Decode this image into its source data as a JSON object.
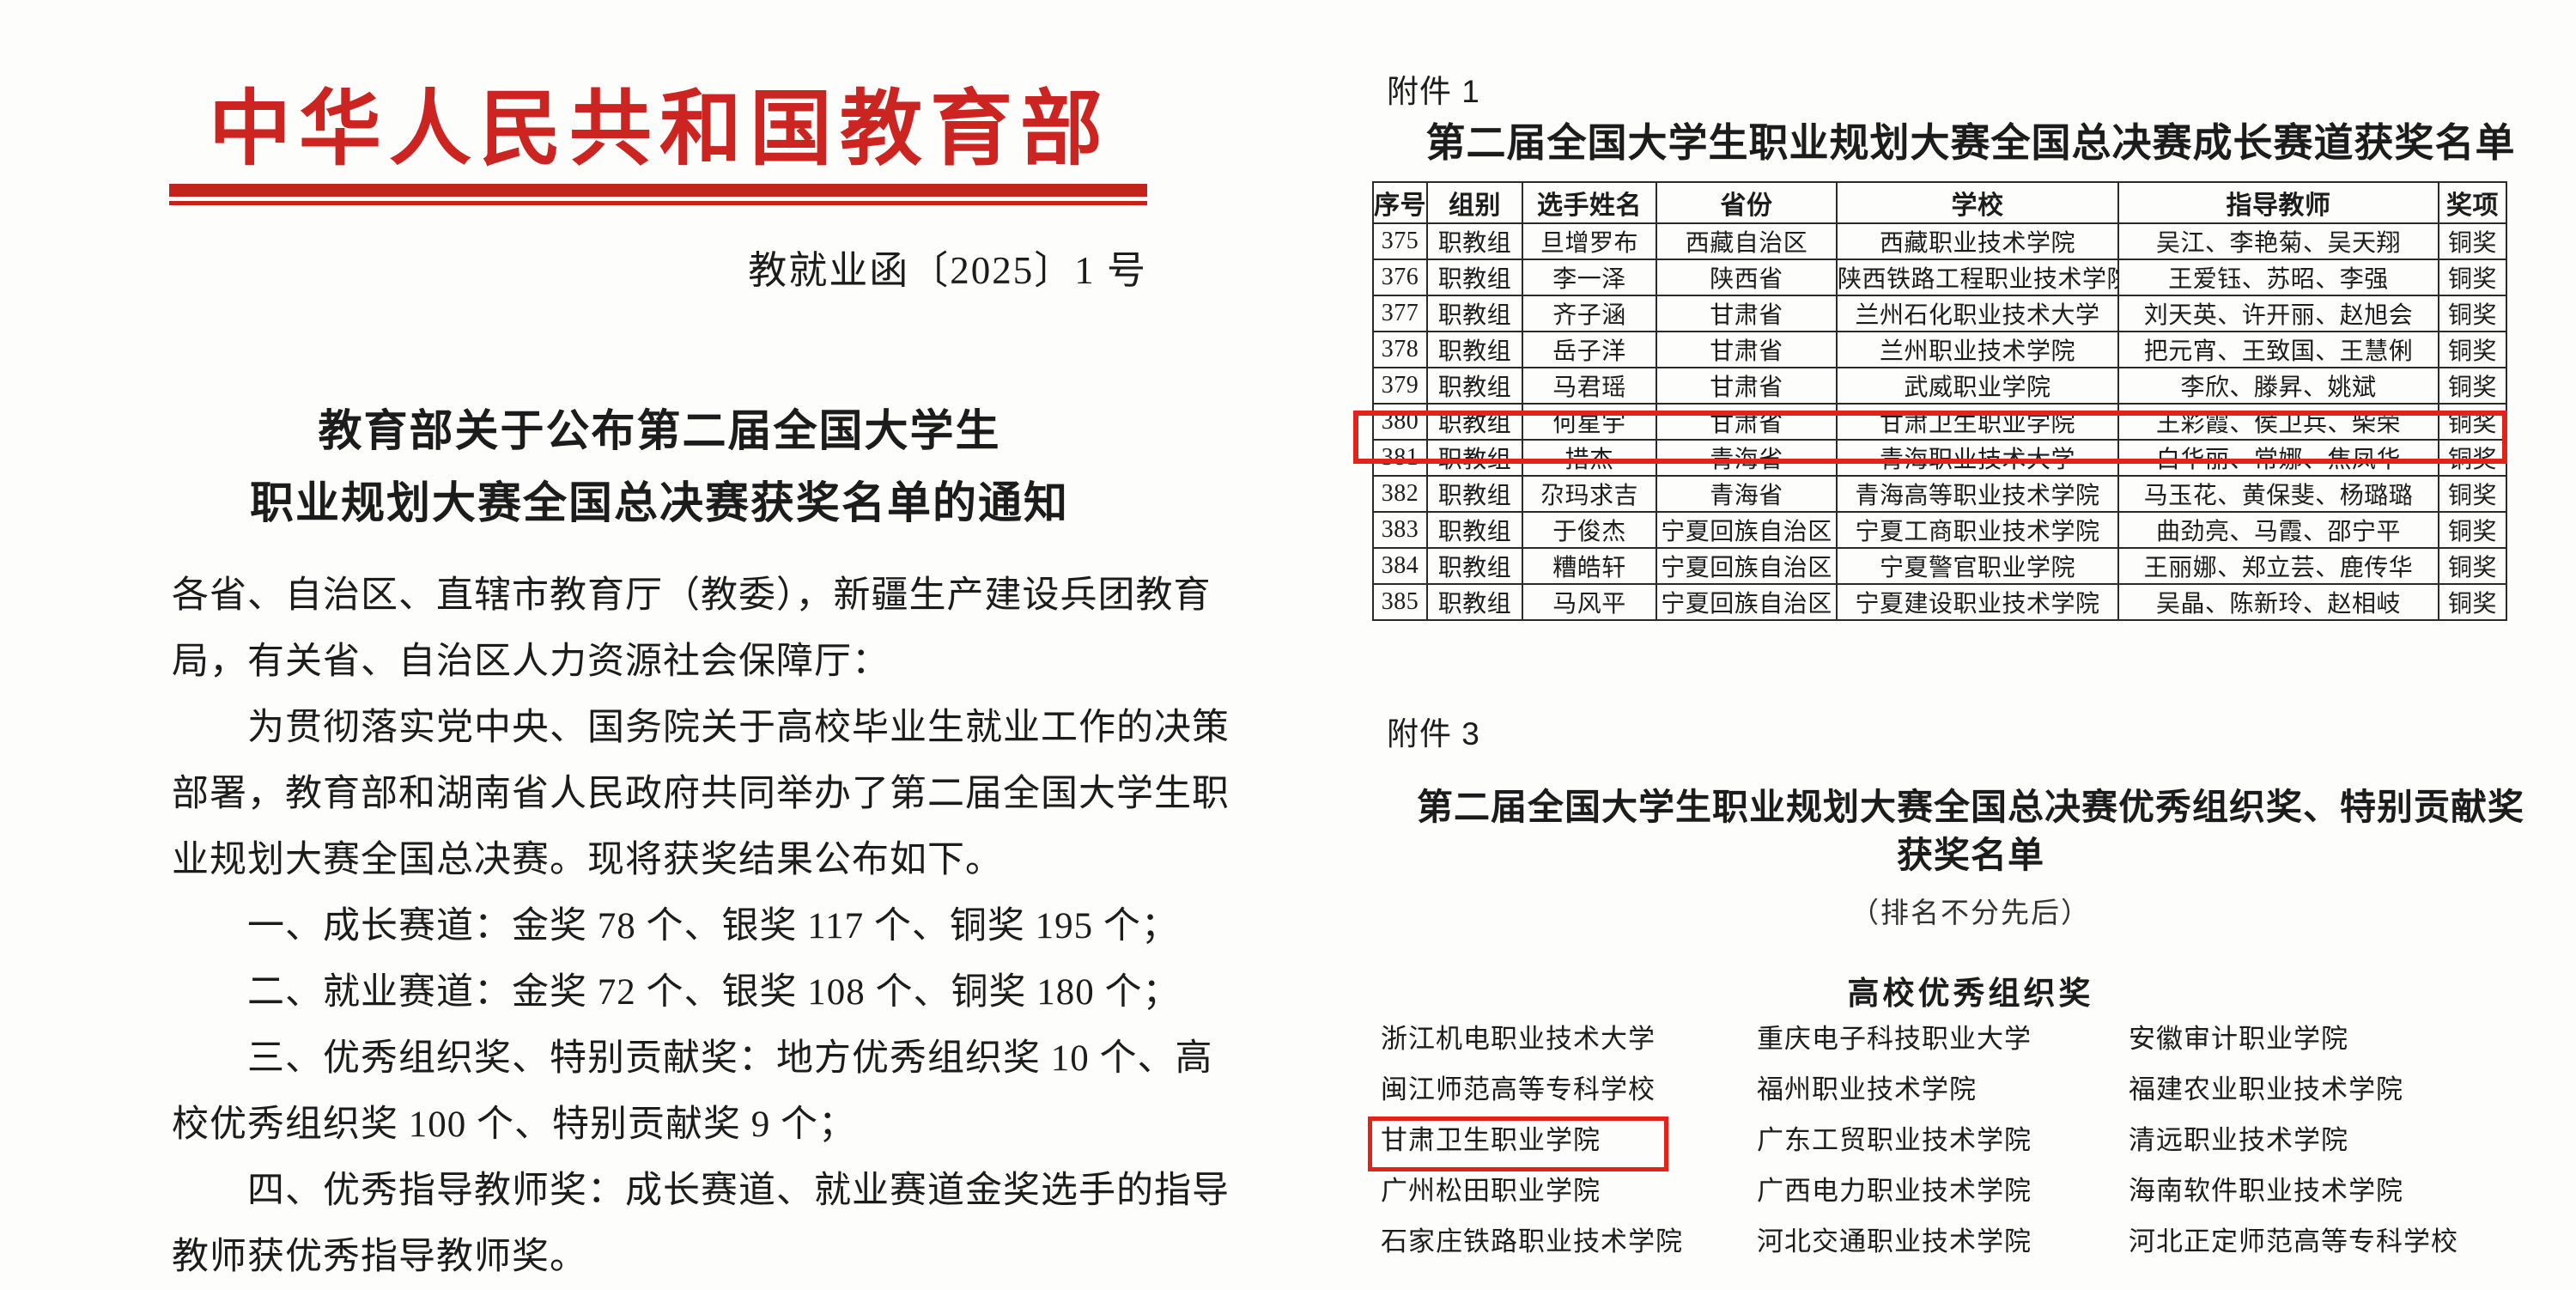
{
  "colors": {
    "accent_red": "#cc2420",
    "rule_red": "#c2241c",
    "highlight_box_red": "#e32219",
    "text": "#1c1c1c"
  },
  "page_left": {
    "agency_header": "中华人民共和国教育部",
    "doc_number": "教就业函〔2025〕1 号",
    "notice_title_line1": "教育部关于公布第二届全国大学生",
    "notice_title_line2": "职业规划大赛全国总决赛获奖名单的通知",
    "body_lines": [
      "各省、自治区、直辖市教育厅（教委），新疆生产建设兵团教育",
      "局，有关省、自治区人力资源社会保障厅：",
      "　　为贯彻落实党中央、国务院关于高校毕业生就业工作的决策",
      "部署，教育部和湖南省人民政府共同举办了第二届全国大学生职",
      "业规划大赛全国总决赛。现将获奖结果公布如下。",
      "　　一、成长赛道：金奖 78 个、银奖 117 个、铜奖 195 个；",
      "　　二、就业赛道：金奖 72 个、银奖 108 个、铜奖 180 个；",
      "　　三、优秀组织奖、特别贡献奖：地方优秀组织奖 10 个、高",
      "校优秀组织奖 100 个、特别贡献奖 9 个；",
      "　　四、优秀指导教师奖：成长赛道、就业赛道金奖选手的指导",
      "教师获优秀指导教师奖。"
    ]
  },
  "page_right": {
    "attachment1": {
      "label": "附件 1",
      "title": "第二届全国大学生职业规划大赛全国总决赛成长赛道获奖名单",
      "table": {
        "headers": [
          "序号",
          "组别",
          "选手姓名",
          "省份",
          "学校",
          "指导教师",
          "奖项"
        ],
        "rows": [
          [
            "375",
            "职教组",
            "旦增罗布",
            "西藏自治区",
            "西藏职业技术学院",
            "吴江、李艳菊、吴天翔",
            "铜奖"
          ],
          [
            "376",
            "职教组",
            "李一泽",
            "陕西省",
            "陕西铁路工程职业技术学院",
            "王爱钰、苏昭、李强",
            "铜奖"
          ],
          [
            "377",
            "职教组",
            "齐子涵",
            "甘肃省",
            "兰州石化职业技术大学",
            "刘天英、许开丽、赵旭会",
            "铜奖"
          ],
          [
            "378",
            "职教组",
            "岳子洋",
            "甘肃省",
            "兰州职业技术学院",
            "把元宵、王致国、王慧俐",
            "铜奖"
          ],
          [
            "379",
            "职教组",
            "马君瑶",
            "甘肃省",
            "武威职业学院",
            "李欣、滕昇、姚斌",
            "铜奖"
          ],
          [
            "380",
            "职教组",
            "何星宇",
            "甘肃省",
            "甘肃卫生职业学院",
            "王彩霞、侯卫兵、柴荣",
            "铜奖"
          ],
          [
            "381",
            "职教组",
            "措杰",
            "青海省",
            "青海职业技术大学",
            "白华丽、常娜、焦凤华",
            "铜奖"
          ],
          [
            "382",
            "职教组",
            "尕玛求吉",
            "青海省",
            "青海高等职业技术学院",
            "马玉花、黄保斐、杨璐璐",
            "铜奖"
          ],
          [
            "383",
            "职教组",
            "于俊杰",
            "宁夏回族自治区",
            "宁夏工商职业技术学院",
            "曲劲亮、马霞、邵宁平",
            "铜奖"
          ],
          [
            "384",
            "职教组",
            "糟皓轩",
            "宁夏回族自治区",
            "宁夏警官职业学院",
            "王丽娜、郑立芸、鹿传华",
            "铜奖"
          ],
          [
            "385",
            "职教组",
            "马风平",
            "宁夏回族自治区",
            "宁夏建设职业技术学院",
            "吴晶、陈新玲、赵相岐",
            "铜奖"
          ]
        ],
        "highlighted_row_seq": "380",
        "highlighted_row_index": 5
      }
    },
    "attachment3": {
      "label": "附件 3",
      "title_line1": "第二届全国大学生职业规划大赛全国总决赛优秀组织奖、特别贡献奖",
      "title_line2": "获奖名单",
      "subtitle": "（排名不分先后）",
      "section_heading": "高校优秀组织奖",
      "school_rows": [
        [
          "浙江机电职业技术大学",
          "重庆电子科技职业大学",
          "安徽审计职业学院"
        ],
        [
          "闽江师范高等专科学校",
          "福州职业技术学院",
          "福建农业职业技术学院"
        ],
        [
          "甘肃卫生职业学院",
          "广东工贸职业技术学院",
          "清远职业技术学院"
        ],
        [
          "广州松田职业学院",
          "广西电力职业技术学院",
          "海南软件职业技术学院"
        ],
        [
          "石家庄铁路职业技术学院",
          "河北交通职业技术学院",
          "河北正定师范高等专科学校"
        ]
      ],
      "highlighted_school": "甘肃卫生职业学院",
      "highlighted_school_row": 2,
      "highlighted_school_col": 0
    }
  }
}
